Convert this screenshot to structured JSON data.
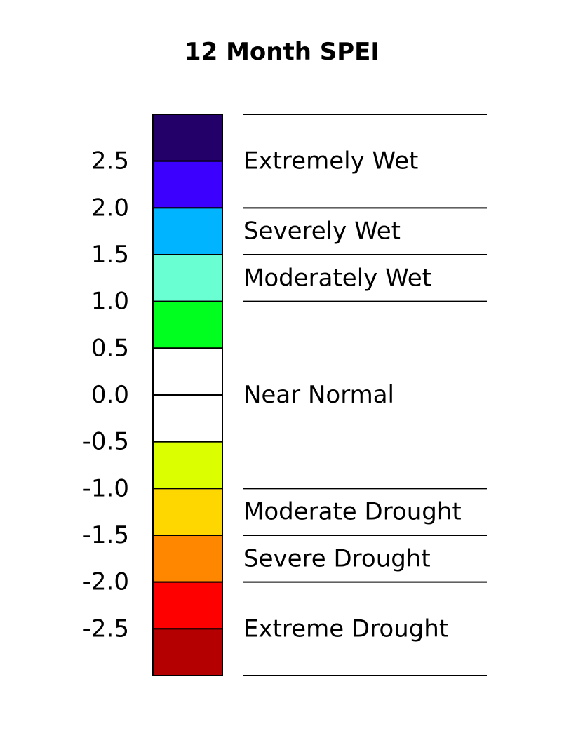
{
  "title": "12 Month SPEI",
  "chart_data": {
    "type": "color-scale-legend",
    "title": "12 Month SPEI",
    "range": [
      -3.0,
      3.0
    ],
    "step": 0.5,
    "ticks": [
      {
        "value": 2.5,
        "label": "2.5"
      },
      {
        "value": 2.0,
        "label": "2.0"
      },
      {
        "value": 1.5,
        "label": "1.5"
      },
      {
        "value": 1.0,
        "label": "1.0"
      },
      {
        "value": 0.5,
        "label": "0.5"
      },
      {
        "value": 0.0,
        "label": "0.0"
      },
      {
        "value": -0.5,
        "label": "-0.5"
      },
      {
        "value": -1.0,
        "label": "-1.0"
      },
      {
        "value": -1.5,
        "label": "-1.5"
      },
      {
        "value": -2.0,
        "label": "-2.0"
      },
      {
        "value": -2.5,
        "label": "-2.5"
      }
    ],
    "bins": [
      {
        "from": 2.5,
        "to": 3.0,
        "color": "#230069"
      },
      {
        "from": 2.0,
        "to": 2.5,
        "color": "#3c00ff"
      },
      {
        "from": 1.5,
        "to": 2.0,
        "color": "#00b4ff"
      },
      {
        "from": 1.0,
        "to": 1.5,
        "color": "#6affd2"
      },
      {
        "from": 0.5,
        "to": 1.0,
        "color": "#00ff1e"
      },
      {
        "from": 0.0,
        "to": 0.5,
        "color": "#ffffff"
      },
      {
        "from": -0.5,
        "to": 0.0,
        "color": "#ffffff"
      },
      {
        "from": -1.0,
        "to": -0.5,
        "color": "#dcff00"
      },
      {
        "from": -1.5,
        "to": -1.0,
        "color": "#ffd700"
      },
      {
        "from": -2.0,
        "to": -1.5,
        "color": "#ff8700"
      },
      {
        "from": -2.5,
        "to": -2.0,
        "color": "#ff0000"
      },
      {
        "from": -3.0,
        "to": -2.5,
        "color": "#b40000"
      }
    ],
    "categories": [
      {
        "label": "Extremely Wet",
        "from": 2.0,
        "to": 3.0,
        "label_at": 2.5
      },
      {
        "label": "Severely Wet",
        "from": 1.5,
        "to": 2.0,
        "label_at": 1.75
      },
      {
        "label": "Moderately Wet",
        "from": 1.0,
        "to": 1.5,
        "label_at": 1.25
      },
      {
        "label": "Near Normal",
        "from": -1.0,
        "to": 1.0,
        "label_at": 0.0
      },
      {
        "label": "Moderate Drought",
        "from": -1.5,
        "to": -1.0,
        "label_at": -1.25
      },
      {
        "label": "Severe Drought",
        "from": -2.0,
        "to": -1.5,
        "label_at": -1.75
      },
      {
        "label": "Extreme Drought",
        "from": -3.0,
        "to": -2.0,
        "label_at": -2.5
      }
    ],
    "category_boundaries": [
      3.0,
      2.0,
      1.5,
      1.0,
      -1.0,
      -1.5,
      -2.0,
      -3.0
    ]
  }
}
